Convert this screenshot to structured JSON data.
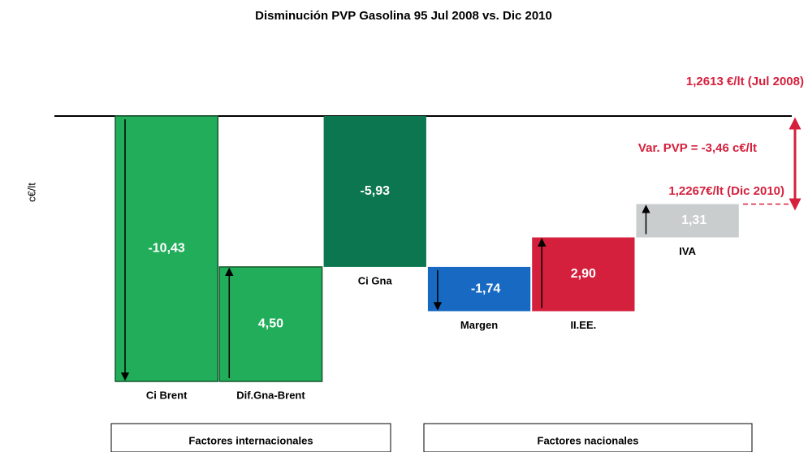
{
  "chart_data": {
    "type": "waterfall",
    "title": "Disminución PVP Gasolina 95 Jul 2008 vs. Dic 2010",
    "y_label": "c€/lt",
    "categories": [
      "Ci Brent",
      "Dif.Gna-Brent",
      "Ci Gna",
      "Margen",
      "II.EE.",
      "IVA"
    ],
    "values": [
      -10.43,
      4.5,
      -5.93,
      -1.74,
      2.9,
      1.31
    ],
    "value_labels": [
      "-10,43",
      "4,50",
      "-5,93",
      "-1,74",
      "2,90",
      "1,31"
    ],
    "measure": [
      "relative",
      "relative",
      "total",
      "relative",
      "relative",
      "relative"
    ],
    "colors": [
      "#21ad5a",
      "#21ad5a",
      "#0b7650",
      "#1769c2",
      "#d5203d",
      "#c9cdcd"
    ],
    "ylim": [
      -11,
      1
    ],
    "annotations": [
      "1,2613 €/lt (Jul 2008)",
      "Var. PVP = -3,46 c€/lt",
      "1,2267€/lt (Dic 2010)"
    ],
    "groups": [
      "Factores internacionales",
      "Factores nacionales"
    ]
  }
}
